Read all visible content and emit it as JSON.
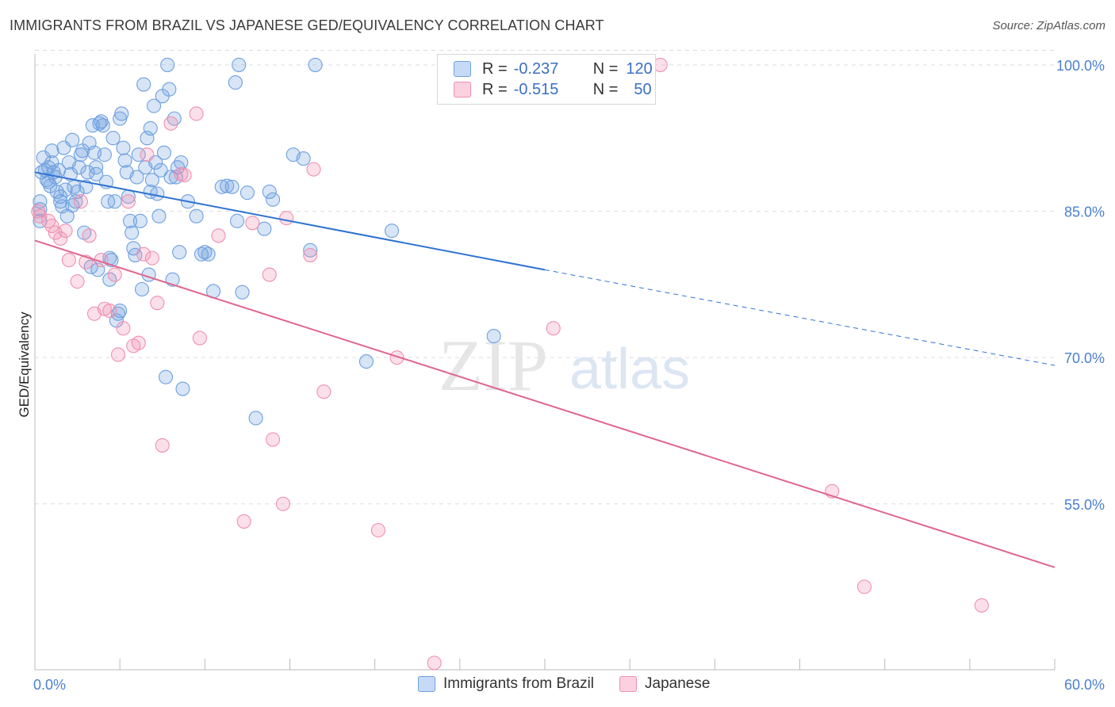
{
  "header": {
    "title": "IMMIGRANTS FROM BRAZIL VS JAPANESE GED/EQUIVALENCY CORRELATION CHART",
    "source": "Source: ZipAtlas.com"
  },
  "legend": {
    "rows": [
      {
        "r_label": "R =",
        "r_value": "-0.237",
        "n_label": "N =",
        "n_value": "120",
        "color": "#6fa0e0"
      },
      {
        "r_label": "R =",
        "r_value": "-0.515",
        "n_label": "N =",
        "n_value": "50",
        "color": "#f08fb0"
      }
    ]
  },
  "watermark": {
    "zip": "ZIP",
    "atlas": "atlas"
  },
  "chart_data": {
    "type": "scatter",
    "title": "IMMIGRANTS FROM BRAZIL VS JAPANESE GED/EQUIVALENCY CORRELATION CHART",
    "xlabel": "",
    "ylabel": "GED/Equivalency",
    "xlim": [
      0,
      60
    ],
    "ylim": [
      38,
      103
    ],
    "x_tick_labels": [
      "0.0%",
      "60.0%"
    ],
    "y_ticks": [
      55,
      70,
      85,
      100
    ],
    "y_tick_labels": [
      "55.0%",
      "70.0%",
      "85.0%",
      "100.0%"
    ],
    "grid": true,
    "legend_position": "top-center",
    "series": [
      {
        "name": "Immigrants from Brazil",
        "color": "#6fa0e0",
        "trend": {
          "x0": 0,
          "y0": 89.0,
          "x1": 30,
          "y1": 79.0,
          "dashed_to_x": 60,
          "dashed_to_y": 69.2
        },
        "points": [
          [
            0.3,
            86.0
          ],
          [
            0.3,
            85.2
          ],
          [
            0.3,
            84.0
          ],
          [
            0.4,
            89.0
          ],
          [
            0.5,
            90.5
          ],
          [
            0.6,
            89.2
          ],
          [
            0.7,
            88.2
          ],
          [
            0.8,
            89.5
          ],
          [
            0.9,
            87.6
          ],
          [
            1.0,
            91.2
          ],
          [
            1.0,
            90.0
          ],
          [
            1.1,
            89.0
          ],
          [
            1.2,
            88.5
          ],
          [
            1.3,
            87.0
          ],
          [
            1.4,
            89.2
          ],
          [
            1.5,
            86.5
          ],
          [
            1.6,
            85.5
          ],
          [
            1.7,
            91.5
          ],
          [
            1.8,
            87.2
          ],
          [
            1.9,
            84.5
          ],
          [
            2.0,
            90.0
          ],
          [
            2.1,
            88.8
          ],
          [
            2.2,
            92.3
          ],
          [
            2.3,
            87.5
          ],
          [
            2.4,
            86.0
          ],
          [
            2.5,
            87.0
          ],
          [
            2.6,
            89.5
          ],
          [
            2.7,
            90.8
          ],
          [
            2.8,
            91.2
          ],
          [
            2.9,
            82.8
          ],
          [
            3.0,
            87.5
          ],
          [
            3.1,
            89.0
          ],
          [
            3.2,
            92.0
          ],
          [
            3.3,
            79.3
          ],
          [
            3.4,
            93.8
          ],
          [
            3.5,
            91.0
          ],
          [
            3.6,
            89.5
          ],
          [
            3.7,
            79.0
          ],
          [
            3.8,
            94.0
          ],
          [
            3.9,
            94.2
          ],
          [
            4.0,
            93.8
          ],
          [
            4.1,
            90.8
          ],
          [
            4.2,
            88.0
          ],
          [
            4.3,
            86.0
          ],
          [
            4.4,
            78.0
          ],
          [
            4.5,
            80.0
          ],
          [
            4.6,
            92.5
          ],
          [
            4.7,
            86.0
          ],
          [
            4.8,
            73.8
          ],
          [
            4.9,
            74.5
          ],
          [
            5.0,
            94.5
          ],
          [
            5.1,
            95.0
          ],
          [
            5.2,
            91.5
          ],
          [
            5.3,
            90.2
          ],
          [
            5.4,
            89.0
          ],
          [
            5.5,
            86.5
          ],
          [
            5.6,
            84.0
          ],
          [
            5.7,
            82.8
          ],
          [
            5.8,
            81.2
          ],
          [
            5.9,
            80.5
          ],
          [
            6.0,
            88.5
          ],
          [
            6.1,
            90.8
          ],
          [
            6.2,
            84.0
          ],
          [
            6.3,
            77.0
          ],
          [
            6.4,
            98.0
          ],
          [
            6.5,
            89.5
          ],
          [
            6.6,
            92.5
          ],
          [
            6.7,
            78.5
          ],
          [
            6.8,
            93.5
          ],
          [
            6.9,
            88.2
          ],
          [
            7.0,
            95.8
          ],
          [
            7.1,
            90.0
          ],
          [
            7.2,
            86.8
          ],
          [
            7.3,
            84.5
          ],
          [
            7.4,
            89.2
          ],
          [
            7.5,
            96.8
          ],
          [
            7.6,
            91.0
          ],
          [
            7.7,
            68.0
          ],
          [
            7.8,
            100.0
          ],
          [
            7.9,
            97.5
          ],
          [
            8.0,
            88.5
          ],
          [
            8.1,
            78.0
          ],
          [
            8.2,
            94.5
          ],
          [
            8.3,
            88.5
          ],
          [
            8.4,
            89.5
          ],
          [
            8.5,
            80.8
          ],
          [
            8.6,
            90.0
          ],
          [
            8.7,
            66.8
          ],
          [
            9.0,
            86.0
          ],
          [
            9.5,
            84.5
          ],
          [
            10.0,
            80.8
          ],
          [
            10.2,
            80.6
          ],
          [
            10.5,
            76.8
          ],
          [
            11.0,
            87.5
          ],
          [
            11.3,
            87.6
          ],
          [
            11.6,
            87.5
          ],
          [
            11.9,
            84.0
          ],
          [
            12.2,
            76.7
          ],
          [
            12.5,
            86.9
          ],
          [
            13.0,
            63.8
          ],
          [
            13.5,
            83.2
          ],
          [
            13.8,
            87.0
          ],
          [
            14.0,
            86.2
          ],
          [
            15.2,
            90.8
          ],
          [
            15.8,
            90.4
          ],
          [
            16.2,
            81.0
          ],
          [
            11.8,
            98.2
          ],
          [
            12.0,
            100.0
          ],
          [
            16.5,
            100.0
          ],
          [
            19.5,
            69.6
          ],
          [
            21.0,
            83.0
          ],
          [
            27.0,
            72.2
          ],
          [
            1.5,
            86.0
          ],
          [
            2.2,
            85.6
          ],
          [
            0.8,
            88.0
          ],
          [
            3.6,
            88.8
          ],
          [
            4.4,
            80.2
          ],
          [
            6.8,
            87.0
          ],
          [
            9.8,
            80.6
          ],
          [
            5.0,
            74.8
          ]
        ]
      },
      {
        "name": "Japanese",
        "color": "#f08fb0",
        "trend": {
          "x0": 0,
          "y0": 82.0,
          "x1": 60,
          "y1": 48.5
        },
        "points": [
          [
            0.2,
            85.0
          ],
          [
            0.3,
            84.5
          ],
          [
            0.8,
            84.0
          ],
          [
            1.0,
            83.5
          ],
          [
            1.2,
            82.8
          ],
          [
            1.5,
            82.2
          ],
          [
            1.8,
            83.0
          ],
          [
            2.0,
            80.0
          ],
          [
            2.5,
            77.8
          ],
          [
            2.7,
            86.0
          ],
          [
            3.0,
            79.8
          ],
          [
            3.2,
            82.5
          ],
          [
            3.5,
            74.5
          ],
          [
            3.9,
            80.0
          ],
          [
            4.1,
            75.0
          ],
          [
            4.4,
            74.8
          ],
          [
            4.7,
            78.5
          ],
          [
            4.9,
            70.3
          ],
          [
            5.2,
            73.0
          ],
          [
            5.5,
            86.0
          ],
          [
            5.8,
            71.2
          ],
          [
            6.1,
            71.5
          ],
          [
            6.4,
            80.6
          ],
          [
            6.6,
            90.8
          ],
          [
            6.9,
            80.2
          ],
          [
            7.2,
            75.6
          ],
          [
            7.5,
            61.0
          ],
          [
            8.0,
            94.0
          ],
          [
            8.6,
            88.8
          ],
          [
            8.8,
            88.7
          ],
          [
            9.5,
            95.0
          ],
          [
            9.7,
            72.0
          ],
          [
            10.8,
            82.5
          ],
          [
            12.3,
            53.2
          ],
          [
            12.8,
            83.8
          ],
          [
            13.8,
            78.5
          ],
          [
            14.0,
            61.6
          ],
          [
            14.6,
            55.0
          ],
          [
            14.8,
            84.3
          ],
          [
            16.2,
            80.5
          ],
          [
            16.4,
            89.3
          ],
          [
            17.0,
            66.5
          ],
          [
            20.2,
            52.3
          ],
          [
            21.3,
            70.0
          ],
          [
            23.5,
            38.7
          ],
          [
            30.5,
            73.0
          ],
          [
            36.8,
            100.0
          ],
          [
            46.9,
            56.3
          ],
          [
            48.8,
            46.5
          ],
          [
            55.7,
            44.6
          ]
        ]
      }
    ]
  },
  "bottom_legend": {
    "items": [
      {
        "label": "Immigrants from Brazil",
        "color": "#6fa0e0"
      },
      {
        "label": "Japanese",
        "color": "#f08fb0"
      }
    ]
  }
}
